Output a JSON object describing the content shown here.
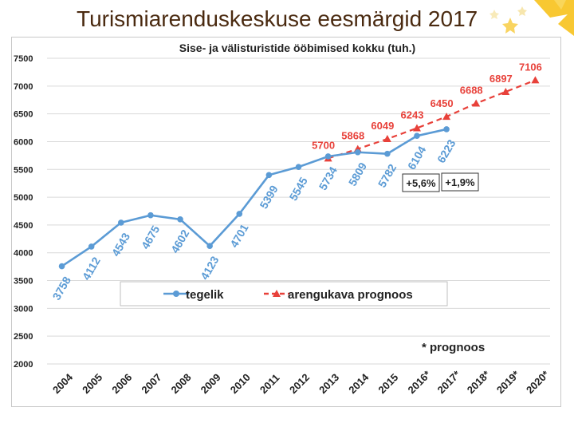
{
  "slide": {
    "title": "Turismiarenduskeskuse eesmärgid 2017"
  },
  "colors": {
    "actual": "#5b9bd5",
    "forecast": "#e8413a",
    "title": "#4a2a10",
    "grid": "#d9d9d9",
    "decor": "#f7c21c"
  },
  "chart_data": {
    "type": "line",
    "title": "Sise- ja välisturistide ööbimised kokku (tuh.)",
    "xlabel": "",
    "ylabel": "",
    "ylim": [
      2000,
      7500
    ],
    "y_ticks": [
      "2000",
      "2500",
      "3000",
      "3500",
      "4000",
      "4500",
      "5000",
      "5500",
      "6000",
      "6500",
      "7000",
      "7500"
    ],
    "categories": [
      "2004",
      "2005",
      "2006",
      "2007",
      "2008",
      "2009",
      "2010",
      "2011",
      "2012",
      "2013",
      "2014",
      "2015",
      "2016*",
      "2017*",
      "2018*",
      "2019*",
      "2020*"
    ],
    "grid": true,
    "legend_position": "middle-left",
    "series": [
      {
        "name": "tegelik",
        "style": "solid-circle",
        "values": [
          3758,
          4112,
          4543,
          4675,
          4602,
          4123,
          4701,
          5399,
          5545,
          5734,
          5809,
          5782,
          6104,
          6223,
          null,
          null,
          null
        ],
        "labels": [
          "3758",
          "4112",
          "4543",
          "4675",
          "4602",
          "4123",
          "4701",
          "5399",
          "5545",
          "5734",
          "5809",
          "5782",
          "6104",
          "6223",
          "",
          "",
          ""
        ]
      },
      {
        "name": "arengukava prognoos",
        "style": "dashed-triangle",
        "values": [
          null,
          null,
          null,
          null,
          null,
          null,
          null,
          null,
          null,
          5700,
          5868,
          6049,
          6243,
          6450,
          6688,
          6897,
          7106
        ],
        "labels": [
          "",
          "",
          "",
          "",
          "",
          "",
          "",
          "",
          "",
          "5700",
          "5868",
          "6049",
          "6243",
          "6450",
          "6688",
          "6897",
          "7106"
        ]
      }
    ],
    "annotations": {
      "growth_2016": "+5,6%",
      "growth_2017": "+1,9%",
      "footnote": "* prognoos"
    }
  }
}
